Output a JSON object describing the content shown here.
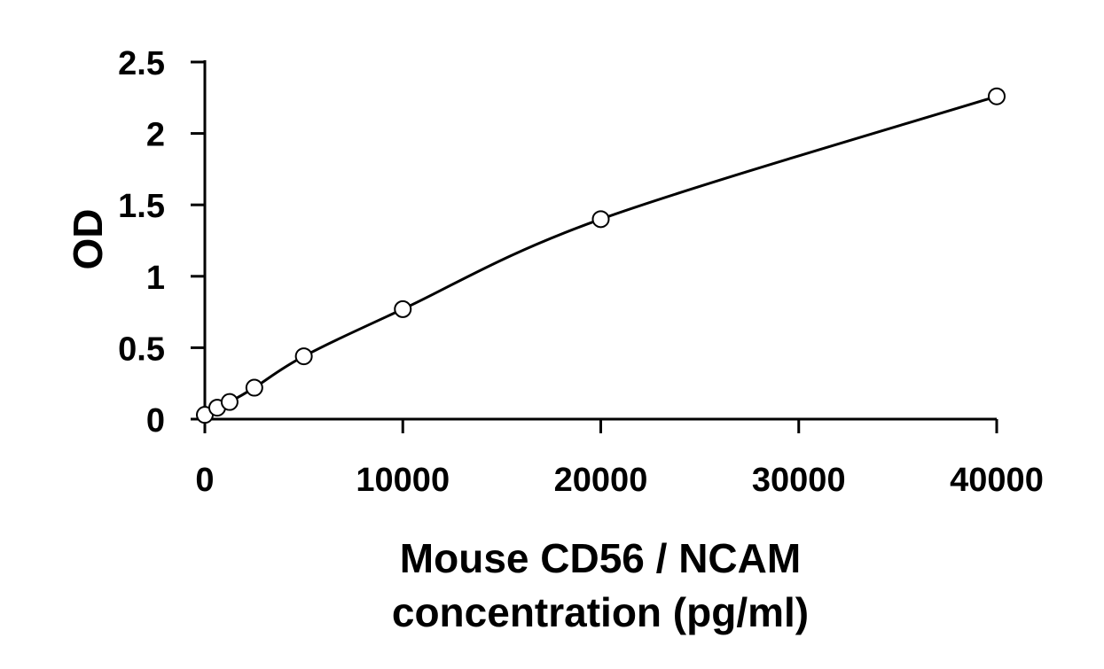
{
  "chart_data": {
    "type": "scatter",
    "title": "",
    "xlabel_lines": [
      "Mouse CD56 / NCAM",
      "concentration (pg/ml)"
    ],
    "ylabel": "OD",
    "xlim": [
      0,
      40000
    ],
    "ylim": [
      0,
      2.5
    ],
    "xticks": [
      0,
      10000,
      20000,
      30000,
      40000
    ],
    "xtick_labels": [
      "0",
      "10000",
      "20000",
      "30000",
      "40000"
    ],
    "yticks": [
      0,
      0.5,
      1,
      1.5,
      2,
      2.5
    ],
    "ytick_labels": [
      "0",
      "0.5",
      "1",
      "1.5",
      "2",
      "2.5"
    ],
    "grid": false,
    "legend": "none",
    "series": [
      {
        "marker": "open-circle",
        "fitted_curve": true,
        "x": [
          0,
          625,
          1250,
          2500,
          5000,
          10000,
          20000,
          40000
        ],
        "y": [
          0.03,
          0.08,
          0.12,
          0.22,
          0.44,
          0.77,
          1.4,
          2.26
        ]
      }
    ],
    "colors": {
      "line": "#000000",
      "marker_fill": "#ffffff"
    }
  }
}
